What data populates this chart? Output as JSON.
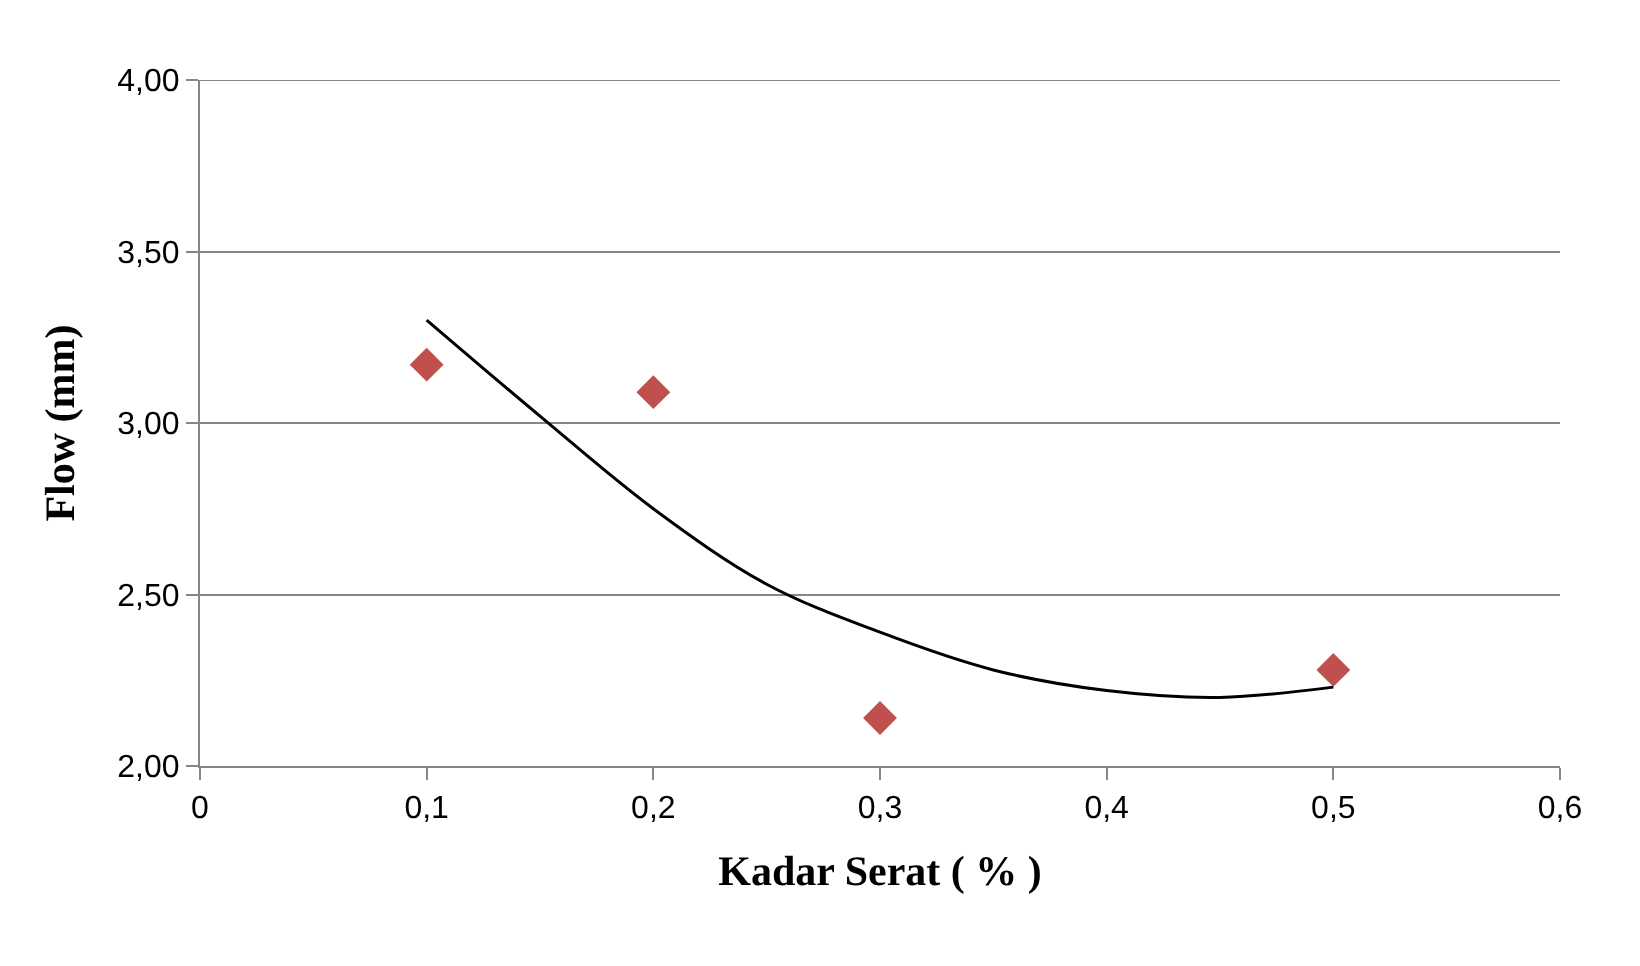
{
  "chart_data": {
    "type": "scatter",
    "xlabel": "Kadar Serat ( % )",
    "ylabel": "Flow (mm)",
    "series": [
      {
        "color": "#c0504d",
        "marker": "diamond",
        "x": [
          0.1,
          0.2,
          0.3,
          0.5
        ],
        "values": [
          3.17,
          3.09,
          2.14,
          2.28
        ]
      },
      {
        "type": "line",
        "color": "#000000",
        "marker": "none",
        "x": [
          0.1,
          0.15,
          0.2,
          0.25,
          0.3,
          0.35,
          0.4,
          0.45,
          0.5
        ],
        "values": [
          3.3,
          3.02,
          2.75,
          2.53,
          2.39,
          2.28,
          2.22,
          2.2,
          2.23
        ]
      }
    ],
    "xlim": [
      0,
      0.6
    ],
    "xticks": [
      {
        "value": 0,
        "label": "0"
      },
      {
        "value": 0.1,
        "label": "0,1"
      },
      {
        "value": 0.2,
        "label": "0,2"
      },
      {
        "value": 0.3,
        "label": "0,3"
      },
      {
        "value": 0.4,
        "label": "0,4"
      },
      {
        "value": 0.5,
        "label": "0,5"
      },
      {
        "value": 0.6,
        "label": "0,6"
      }
    ],
    "ylim": [
      2,
      4
    ],
    "yticks": [
      {
        "value": 2,
        "label": "2,00"
      },
      {
        "value": 2.5,
        "label": "2,50"
      },
      {
        "value": 3,
        "label": "3,00"
      },
      {
        "value": 3.5,
        "label": "3,50"
      },
      {
        "value": 4,
        "label": "4,00"
      }
    ],
    "grid": "y",
    "legend": false
  }
}
